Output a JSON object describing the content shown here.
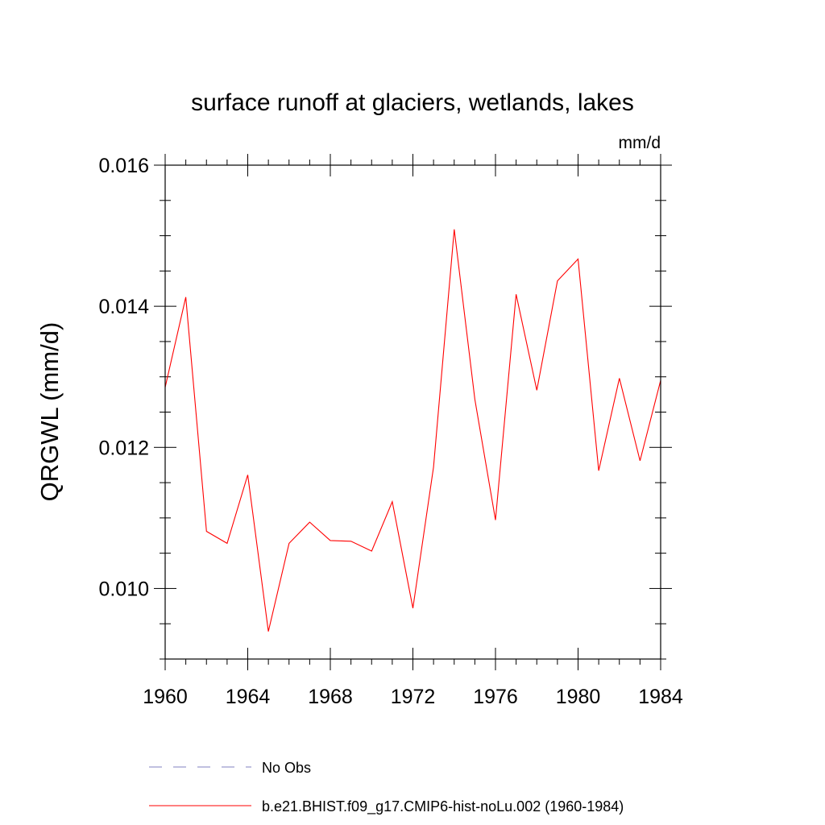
{
  "chart_data": {
    "type": "line",
    "title": "surface runoff at glaciers, wetlands, lakes",
    "units": "mm/d",
    "ylabel": "QRGWL  (mm/d)",
    "xlabel": "",
    "xlim": [
      1960,
      1984
    ],
    "ylim": [
      0.009,
      0.016
    ],
    "x_ticks": [
      1960,
      1964,
      1968,
      1972,
      1976,
      1980,
      1984
    ],
    "x_tick_labels": [
      "1960",
      "1964",
      "1968",
      "1972",
      "1976",
      "1980",
      "1984"
    ],
    "y_ticks": [
      0.01,
      0.012,
      0.014,
      0.016
    ],
    "y_tick_labels": [
      "0.010",
      "0.012",
      "0.014",
      "0.016"
    ],
    "y_minor_step": 0.0005,
    "x_minor_step": 1,
    "grid": false,
    "legend_position": "bottom",
    "x": [
      1960,
      1961,
      1962,
      1963,
      1964,
      1965,
      1966,
      1967,
      1968,
      1969,
      1970,
      1971,
      1972,
      1973,
      1974,
      1975,
      1976,
      1977,
      1978,
      1979,
      1980,
      1981,
      1982,
      1983,
      1984
    ],
    "series": [
      {
        "name": "b.e21.BHIST.f09_g17.CMIP6-hist-noLu.002 (1960-1984)",
        "color": "#ff0000",
        "style": "solid",
        "values": [
          0.01285,
          0.01413,
          0.01081,
          0.01064,
          0.01161,
          0.00939,
          0.01064,
          0.01094,
          0.01068,
          0.01067,
          0.01053,
          0.01123,
          0.00972,
          0.01172,
          0.01509,
          0.01268,
          0.01097,
          0.01417,
          0.01281,
          0.01436,
          0.01467,
          0.01167,
          0.01298,
          0.01181,
          0.01295
        ]
      }
    ],
    "legend": [
      {
        "label": "No Obs",
        "color": "#8080c0",
        "style": "dashed"
      },
      {
        "label": "b.e21.BHIST.f09_g17.CMIP6-hist-noLu.002 (1960-1984)",
        "color": "#ff0000",
        "style": "solid"
      }
    ]
  }
}
